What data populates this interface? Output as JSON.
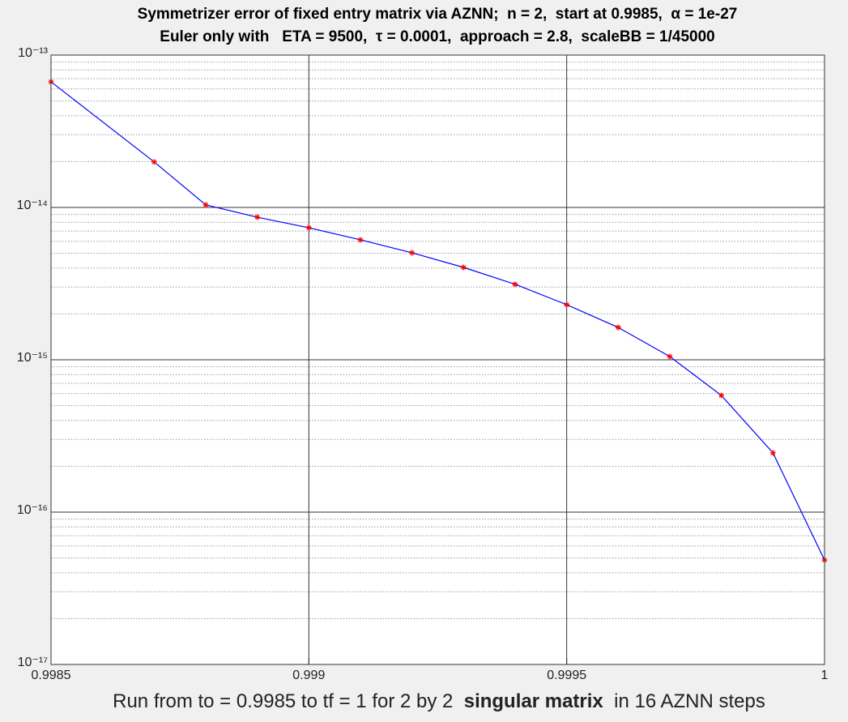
{
  "chart_data": {
    "type": "line",
    "title": "Symmetrizer error of fixed entry matrix via AZNN;  n = 2,  start at 0.9985,  α = 1e-27",
    "subtitle": "Euler only with   ETA = 9500,  τ = 0.0001,  approach = 2.8,  scaleBB = 1/45000",
    "xlabel": [
      "Run from to = 0.9985 to tf = 1 for 2 by 2  ",
      "singular matrix",
      "  in 16 AZNN steps"
    ],
    "x": [
      0.9985,
      0.9987,
      0.9988,
      0.9989,
      0.999,
      0.9991,
      0.9992,
      0.9993,
      0.9994,
      0.9995,
      0.9996,
      0.9997,
      0.9998,
      0.9999,
      1
    ],
    "values": [
      6.68e-14,
      1.99e-14,
      1.04e-14,
      8.63e-15,
      7.36e-15,
      6.13e-15,
      5.04e-15,
      4.04e-15,
      3.13e-15,
      2.3e-15,
      1.63e-15,
      1.05e-15,
      5.83e-16,
      2.45e-16,
      4.85e-17
    ],
    "color": "#0000ff",
    "marker_color": "#ff0000",
    "xlim": [
      0.9985,
      1
    ],
    "xticks": [
      0.9985,
      0.999,
      0.9995,
      1
    ],
    "ylim": [
      1e-17,
      1e-13
    ],
    "yticks": [
      {
        "value": 1e-17,
        "label": "10⁻¹⁷"
      },
      {
        "value": 1e-16,
        "label": "10⁻¹⁶"
      },
      {
        "value": 1e-15,
        "label": "10⁻¹⁵"
      },
      {
        "value": 1e-14,
        "label": "10⁻¹⁴"
      },
      {
        "value": 1e-13,
        "label": "10⁻¹³"
      }
    ],
    "yscale": "log",
    "grid": true,
    "minor_grid": true
  }
}
